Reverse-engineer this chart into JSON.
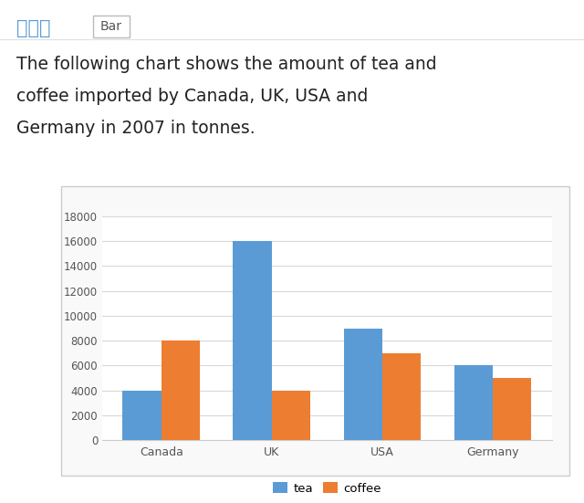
{
  "categories": [
    "Canada",
    "UK",
    "USA",
    "Germany"
  ],
  "tea_values": [
    4000,
    16000,
    9000,
    6000
  ],
  "coffee_values": [
    8000,
    4000,
    7000,
    5000
  ],
  "tea_color": "#5B9BD5",
  "coffee_color": "#ED7D31",
  "ylim": [
    0,
    18000
  ],
  "yticks": [
    0,
    2000,
    4000,
    6000,
    8000,
    10000,
    12000,
    14000,
    16000,
    18000
  ],
  "legend_labels": [
    "tea",
    "coffee"
  ],
  "chart_bg": "#ffffff",
  "plot_bg": "#ffffff",
  "grid_color": "#d8d8d8",
  "header_chinese": "小作文",
  "header_tag": "Bar",
  "header_tag_color": "#aaaaaa",
  "header_chinese_color": "#5B9BD5",
  "desc_line1": "The following chart shows the amount of tea and",
  "desc_line2": "coffee imported by Canada, UK, USA and",
  "desc_line3": "Germany in 2007 in tonnes.",
  "desc_color": "#222222",
  "tick_color": "#555555",
  "spine_color": "#cccccc"
}
